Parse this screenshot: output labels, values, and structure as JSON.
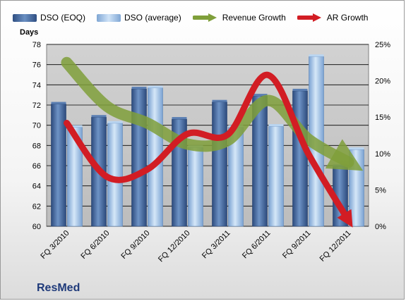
{
  "brand": "ResMed",
  "legend": {
    "dso_eoq": "DSO (EOQ)",
    "dso_avg": "DSO (average)",
    "rev_growth": "Revenue Growth",
    "ar_growth": "AR Growth"
  },
  "colors": {
    "dso_eoq": "#4a6fa3",
    "dso_avg": "#9ec3ea",
    "rev_growth": "#7f9f3a",
    "ar_growth": "#d21d24",
    "plot_bg": "#c8c8c8"
  },
  "chart_data": {
    "type": "bar",
    "categories": [
      "FQ 3/2010",
      "FQ 6/2010",
      "FQ 9/2010",
      "FQ 12/2010",
      "FQ 3/2011",
      "FQ 6/2011",
      "FQ 9/2011",
      "FQ 12/2011"
    ],
    "ylabel": "Days",
    "ylim": [
      60,
      78
    ],
    "yticks": [
      60,
      62,
      64,
      66,
      68,
      70,
      72,
      74,
      76,
      78
    ],
    "y2lim": [
      0,
      25
    ],
    "y2ticks": [
      "0%",
      "5%",
      "10%",
      "15%",
      "20%",
      "25%"
    ],
    "series": [
      {
        "name": "DSO (EOQ)",
        "kind": "bar",
        "axis": "left",
        "values": [
          72.1,
          70.8,
          73.6,
          70.6,
          72.3,
          72.9,
          73.4,
          65.9
        ]
      },
      {
        "name": "DSO (average)",
        "kind": "bar",
        "axis": "left",
        "values": [
          69.8,
          70.2,
          73.7,
          67.8,
          69.8,
          69.9,
          76.8,
          67.6
        ]
      },
      {
        "name": "Revenue Growth",
        "kind": "line",
        "axis": "right",
        "unit": "%",
        "values": [
          22.5,
          16.5,
          14.2,
          11.3,
          11.8,
          17.3,
          12.0,
          8.8
        ]
      },
      {
        "name": "AR Growth",
        "kind": "line",
        "axis": "right",
        "unit": "%",
        "values": [
          14.2,
          6.8,
          7.8,
          12.7,
          12.6,
          20.8,
          10.0,
          0.8
        ]
      }
    ],
    "grid": true,
    "legend_position": "top"
  }
}
